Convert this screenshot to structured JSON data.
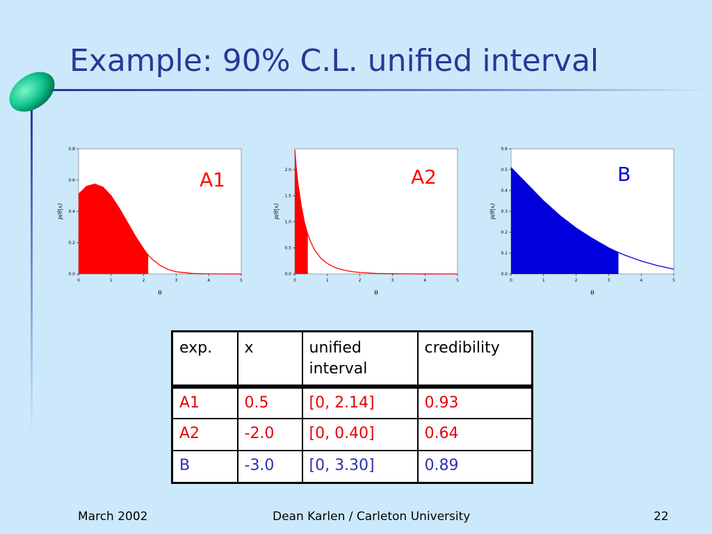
{
  "slide": {
    "title": "Example: 90% C.L. unified interval",
    "footer_left": "March 2002",
    "footer_center": "Dean Karlen / Carleton University",
    "footer_right": "22"
  },
  "colors": {
    "title": "#2e3596",
    "background": "#cce9fb",
    "red": "#ff0000",
    "blue": "#0000dd"
  },
  "chart_data": [
    {
      "type": "area",
      "label": "A1",
      "color": "#ff0000",
      "xlabel": "θ",
      "ylabel": "p(θ|x)",
      "xlim": [
        0,
        5
      ],
      "ylim": [
        0,
        0.8
      ],
      "xticks": [
        "0",
        "1",
        "2",
        "3",
        "4",
        "5"
      ],
      "yticks": [
        "0.0",
        "0.2",
        "0.4",
        "0.6",
        "0.8"
      ],
      "interval": [
        0,
        2.14
      ],
      "x": [
        0,
        0.25,
        0.5,
        0.75,
        1.0,
        1.25,
        1.5,
        1.75,
        2.0,
        2.14,
        2.25,
        2.5,
        2.75,
        3.0,
        3.5,
        4.0,
        4.5,
        5.0
      ],
      "y": [
        0.51,
        0.56,
        0.575,
        0.555,
        0.5,
        0.42,
        0.33,
        0.24,
        0.16,
        0.12,
        0.097,
        0.055,
        0.029,
        0.014,
        0.003,
        0.0006,
        0.0001,
        0.0
      ]
    },
    {
      "type": "area",
      "label": "A2",
      "color": "#ff0000",
      "xlabel": "θ",
      "ylabel": "p(θ|x)",
      "xlim": [
        0,
        5
      ],
      "ylim": [
        0,
        2.4
      ],
      "xticks": [
        "0",
        "1",
        "2",
        "3",
        "4",
        "5"
      ],
      "yticks": [
        "0.0",
        "0.5",
        "1.0",
        "1.5",
        "2.0"
      ],
      "interval": [
        0,
        0.4
      ],
      "x": [
        0,
        0.05,
        0.1,
        0.2,
        0.3,
        0.4,
        0.5,
        0.6,
        0.8,
        1.0,
        1.25,
        1.5,
        1.75,
        2.0,
        2.5,
        3.0,
        3.5,
        4.0,
        4.5,
        5.0
      ],
      "y": [
        2.38,
        2.0,
        1.72,
        1.3,
        0.98,
        0.76,
        0.6,
        0.47,
        0.3,
        0.2,
        0.12,
        0.075,
        0.045,
        0.028,
        0.01,
        0.004,
        0.0015,
        0.0006,
        0.0002,
        0.0
      ]
    },
    {
      "type": "area",
      "label": "B",
      "color": "#0000dd",
      "xlabel": "θ",
      "ylabel": "p(θ|x)",
      "xlim": [
        0,
        5
      ],
      "ylim": [
        0,
        0.6
      ],
      "xticks": [
        "0",
        "1",
        "2",
        "3",
        "4",
        "5"
      ],
      "yticks": [
        "0.0",
        "0.1",
        "0.2",
        "0.3",
        "0.4",
        "0.5",
        "0.6"
      ],
      "interval": [
        0,
        3.3
      ],
      "x": [
        0,
        0.5,
        1.0,
        1.5,
        2.0,
        2.5,
        3.0,
        3.3,
        3.5,
        4.0,
        4.5,
        5.0
      ],
      "y": [
        0.51,
        0.43,
        0.35,
        0.28,
        0.22,
        0.17,
        0.125,
        0.103,
        0.09,
        0.062,
        0.04,
        0.023
      ]
    }
  ],
  "table": {
    "headers": [
      "exp.",
      "x",
      "unified",
      "interval",
      "credibility"
    ],
    "rows": [
      {
        "exp": "A1",
        "x": "0.5",
        "interval": "[0, 2.14]",
        "cred": "0.93",
        "color": "#e8000b"
      },
      {
        "exp": "A2",
        "x": "-2.0",
        "interval": "[0, 0.40]",
        "cred": "0.64",
        "color": "#e8000b"
      },
      {
        "exp": "B",
        "x": "-3.0",
        "interval": "[0, 3.30]",
        "cred": "0.89",
        "color": "#2b2fb3"
      }
    ]
  }
}
